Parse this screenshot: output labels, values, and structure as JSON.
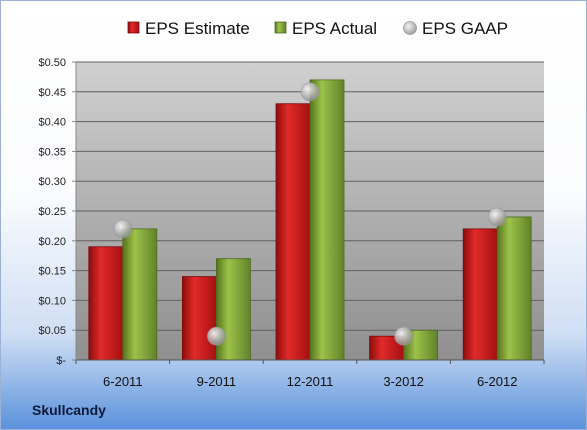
{
  "company": "Skullcandy",
  "chart_data": {
    "type": "bar",
    "categories": [
      "6-2011",
      "9-2011",
      "12-2011",
      "3-2012",
      "6-2012"
    ],
    "series": [
      {
        "name": "EPS Estimate",
        "type": "bar",
        "color": "#c81414",
        "values": [
          0.19,
          0.14,
          0.43,
          0.04,
          0.22
        ]
      },
      {
        "name": "EPS Actual",
        "type": "bar",
        "color": "#7da032",
        "values": [
          0.22,
          0.17,
          0.47,
          0.05,
          0.24
        ]
      },
      {
        "name": "EPS GAAP",
        "type": "scatter",
        "color": "#c0c0c0",
        "values": [
          0.22,
          0.04,
          0.45,
          0.04,
          0.24
        ]
      }
    ],
    "ylim": [
      0,
      0.5
    ],
    "yticks": [
      0,
      0.05,
      0.1,
      0.15,
      0.2,
      0.25,
      0.3,
      0.35,
      0.4,
      0.45,
      0.5
    ],
    "ytick_labels": [
      "$-",
      "$0.05",
      "$0.10",
      "$0.15",
      "$0.20",
      "$0.25",
      "$0.30",
      "$0.35",
      "$0.40",
      "$0.45",
      "$0.50"
    ],
    "grid": true,
    "legend": "top"
  }
}
